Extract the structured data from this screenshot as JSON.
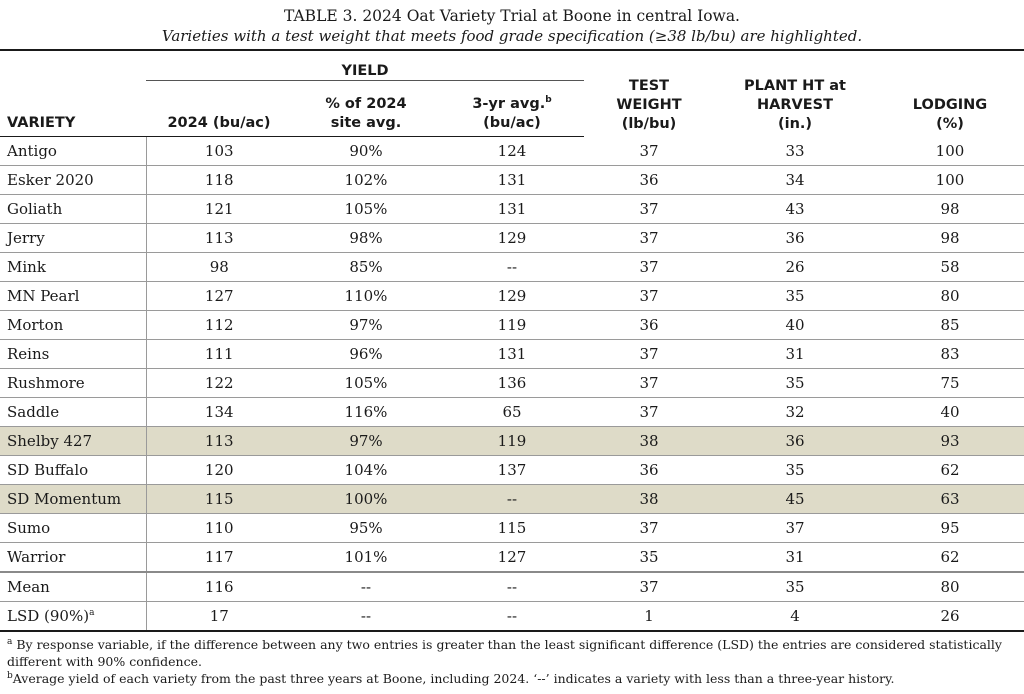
{
  "caption": {
    "title": "TABLE 3. 2024 Oat Variety Trial at Boone in central Iowa.",
    "subtitle": "Varieties with a test weight that meets food grade specification (≥38 lb/bu) are highlighted."
  },
  "header": {
    "group_yield": "YIELD",
    "columns": [
      {
        "line1": "",
        "line2": "VARIETY",
        "sup": ""
      },
      {
        "line1": "",
        "line2": "2024 (bu/ac)",
        "sup": ""
      },
      {
        "line1": "% of 2024",
        "line2": "site avg.",
        "sup": ""
      },
      {
        "line1": "3-yr avg.",
        "line2": "(bu/ac)",
        "sup": "b"
      },
      {
        "line1": "TEST",
        "line2": "WEIGHT",
        "line3": "(lb/bu)"
      },
      {
        "line1": "PLANT HT at",
        "line2": "HARVEST",
        "line3": "(in.)"
      },
      {
        "line1": "LODGING",
        "line2": "(%)"
      }
    ]
  },
  "rows": [
    {
      "variety": "Antigo",
      "yield": "103",
      "pct": "90%",
      "avg3": "124",
      "tw": "37",
      "ht": "33",
      "lodging": "100",
      "highlight": false
    },
    {
      "variety": "Esker 2020",
      "yield": "118",
      "pct": "102%",
      "avg3": "131",
      "tw": "36",
      "ht": "34",
      "lodging": "100",
      "highlight": false
    },
    {
      "variety": "Goliath",
      "yield": "121",
      "pct": "105%",
      "avg3": "131",
      "tw": "37",
      "ht": "43",
      "lodging": "98",
      "highlight": false
    },
    {
      "variety": "Jerry",
      "yield": "113",
      "pct": "98%",
      "avg3": "129",
      "tw": "37",
      "ht": "36",
      "lodging": "98",
      "highlight": false
    },
    {
      "variety": "Mink",
      "yield": "98",
      "pct": "85%",
      "avg3": "--",
      "tw": "37",
      "ht": "26",
      "lodging": "58",
      "highlight": false
    },
    {
      "variety": "MN Pearl",
      "yield": "127",
      "pct": "110%",
      "avg3": "129",
      "tw": "37",
      "ht": "35",
      "lodging": "80",
      "highlight": false
    },
    {
      "variety": "Morton",
      "yield": "112",
      "pct": "97%",
      "avg3": "119",
      "tw": "36",
      "ht": "40",
      "lodging": "85",
      "highlight": false
    },
    {
      "variety": "Reins",
      "yield": "111",
      "pct": "96%",
      "avg3": "131",
      "tw": "37",
      "ht": "31",
      "lodging": "83",
      "highlight": false
    },
    {
      "variety": "Rushmore",
      "yield": "122",
      "pct": "105%",
      "avg3": "136",
      "tw": "37",
      "ht": "35",
      "lodging": "75",
      "highlight": false
    },
    {
      "variety": "Saddle",
      "yield": "134",
      "pct": "116%",
      "avg3": "65",
      "tw": "37",
      "ht": "32",
      "lodging": "40",
      "highlight": false
    },
    {
      "variety": "Shelby 427",
      "yield": "113",
      "pct": "97%",
      "avg3": "119",
      "tw": "38",
      "ht": "36",
      "lodging": "93",
      "highlight": true
    },
    {
      "variety": "SD Buffalo",
      "yield": "120",
      "pct": "104%",
      "avg3": "137",
      "tw": "36",
      "ht": "35",
      "lodging": "62",
      "highlight": false
    },
    {
      "variety": "SD Momentum",
      "yield": "115",
      "pct": "100%",
      "avg3": "--",
      "tw": "38",
      "ht": "45",
      "lodging": "63",
      "highlight": true
    },
    {
      "variety": "Sumo",
      "yield": "110",
      "pct": "95%",
      "avg3": "115",
      "tw": "37",
      "ht": "37",
      "lodging": "95",
      "highlight": false
    },
    {
      "variety": "Warrior",
      "yield": "117",
      "pct": "101%",
      "avg3": "127",
      "tw": "35",
      "ht": "31",
      "lodging": "62",
      "highlight": false
    }
  ],
  "summary": [
    {
      "variety": "Mean",
      "sup": "",
      "yield": "116",
      "pct": "--",
      "avg3": "--",
      "tw": "37",
      "ht": "35",
      "lodging": "80"
    },
    {
      "variety": "LSD (90%)",
      "sup": "a",
      "yield": "17",
      "pct": "--",
      "avg3": "--",
      "tw": "1",
      "ht": "4",
      "lodging": "26"
    }
  ],
  "footnotes": [
    {
      "mark": "a",
      "text": "By response variable, if the difference between any two entries is greater than the least significant difference (LSD) the entries are considered statistically different with 90% confidence."
    },
    {
      "mark": "b",
      "text": "Average yield of each variety from the past three years at Boone, including 2024. ‘--’ indicates a variety with less than a three-year history."
    }
  ],
  "colors": {
    "highlight": "#dedbc8",
    "text": "#1a1a1a"
  }
}
